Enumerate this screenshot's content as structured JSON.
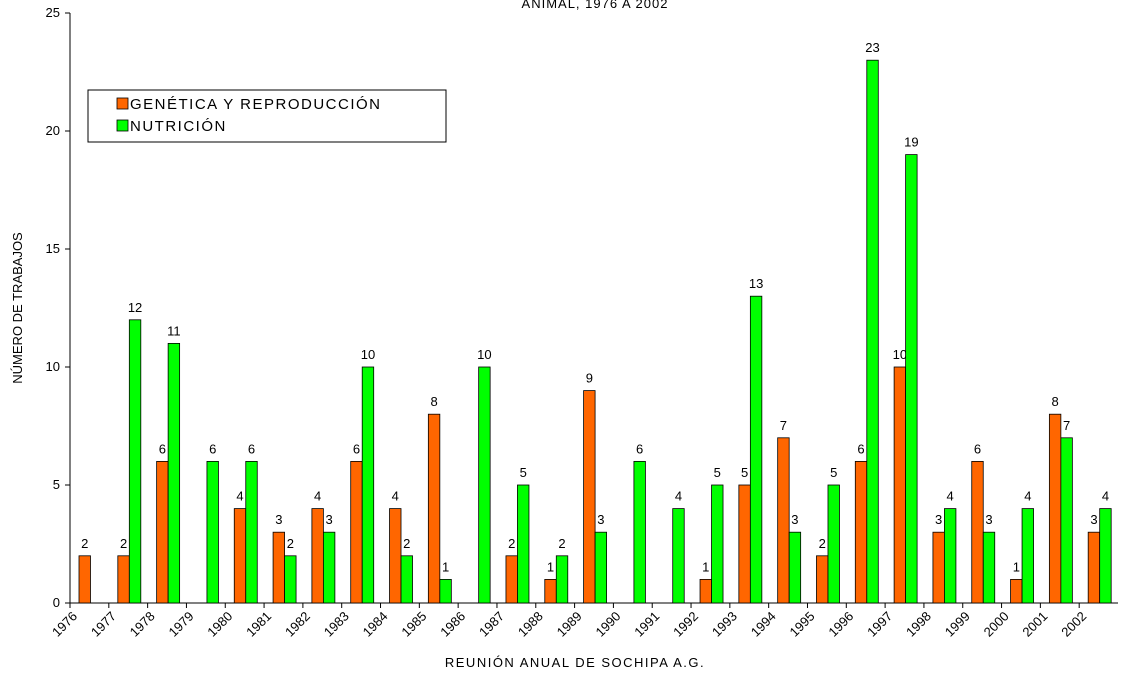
{
  "chart_data": {
    "type": "bar",
    "title": "ANIMAL, 1976 A 2002",
    "x_label": "REUNIÓN ANUAL DE SOCHIPA A.G.",
    "y_label": "NÚMERO DE TRABAJOS",
    "categories": [
      "1976",
      "1977",
      "1978",
      "1979",
      "1980",
      "1981",
      "1982",
      "1983",
      "1984",
      "1985",
      "1986",
      "1987",
      "1988",
      "1989",
      "1990",
      "1991",
      "1992",
      "1993",
      "1994",
      "1995",
      "1996",
      "1997",
      "1998",
      "1999",
      "2000",
      "2001",
      "2002"
    ],
    "series": [
      {
        "name": "GENÉTICA Y REPRODUCCIÓN",
        "color": "#ff6600",
        "values": [
          2,
          2,
          6,
          null,
          4,
          3,
          4,
          6,
          4,
          8,
          null,
          2,
          1,
          9,
          null,
          null,
          1,
          5,
          7,
          2,
          6,
          10,
          3,
          6,
          1,
          8,
          3
        ]
      },
      {
        "name": "NUTRICIÓN",
        "color": "#00ff00",
        "values": [
          null,
          12,
          11,
          6,
          6,
          2,
          3,
          10,
          2,
          1,
          10,
          5,
          2,
          3,
          6,
          4,
          5,
          13,
          3,
          5,
          23,
          19,
          4,
          3,
          4,
          7,
          4
        ]
      }
    ],
    "ylim": [
      0,
      25
    ],
    "yticks": [
      0,
      5,
      10,
      15,
      20,
      25
    ],
    "grid": false
  }
}
